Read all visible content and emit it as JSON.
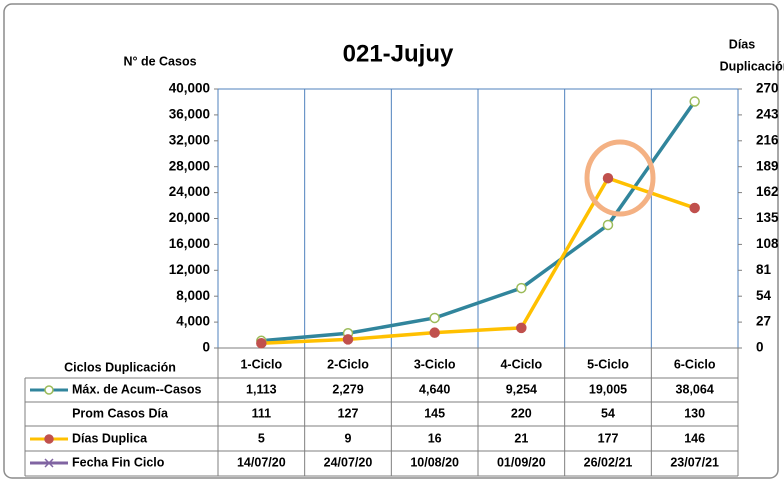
{
  "chart_data": {
    "type": "line",
    "title": "021-Jujuy",
    "ylabel": "N° de Casos",
    "y2label": [
      "Días",
      "Duplicación"
    ],
    "table_header": "Ciclos Duplicación",
    "categories": [
      "1-Ciclo",
      "2-Ciclo",
      "3-Ciclo",
      "4-Ciclo",
      "5-Ciclo",
      "6-Ciclo"
    ],
    "series": [
      {
        "name": "Máx. de Acum--Casos",
        "color": "#31859c",
        "marker_color": "#9bbb59",
        "values": [
          1113,
          2279,
          4640,
          9254,
          19005,
          38064
        ],
        "value_labels": [
          "1,113",
          "2,279",
          "4,640",
          "9,254",
          "19,005",
          "38,064"
        ]
      },
      {
        "name": "Prom Casos Día",
        "values": [
          111,
          127,
          145,
          220,
          54,
          130
        ]
      },
      {
        "name": "Días Duplica",
        "color": "#ffc000",
        "marker_color": "#c0504d",
        "axis": "y2",
        "values": [
          5,
          9,
          16,
          21,
          177,
          146
        ]
      }
    ],
    "dates": {
      "name": "Fecha Fin Ciclo",
      "color": "#8064a2",
      "values": [
        "14/07/20",
        "24/07/20",
        "10/08/20",
        "01/09/20",
        "26/02/21",
        "23/07/21"
      ]
    },
    "ylim": [
      0,
      40000
    ],
    "yticks": [
      0,
      {
        "value": 4000,
        "label": "4,000"
      },
      {
        "value": 8000,
        "label": "8,000"
      },
      {
        "value": 12000,
        "label": "12,000"
      },
      {
        "value": 16000,
        "label": "16,000"
      },
      {
        "value": 20000,
        "label": "20,000"
      },
      {
        "value": 24000,
        "label": "24,000"
      },
      {
        "value": 28000,
        "label": "28,000"
      },
      {
        "value": 32000,
        "label": "32,000"
      },
      {
        "value": 36000,
        "label": "36,000"
      },
      {
        "value": 40000,
        "label": "40,000"
      }
    ],
    "y2lim": [
      0,
      270
    ],
    "y2ticks": [
      0,
      27,
      54,
      81,
      108,
      135,
      162,
      189,
      216,
      243,
      270
    ]
  }
}
